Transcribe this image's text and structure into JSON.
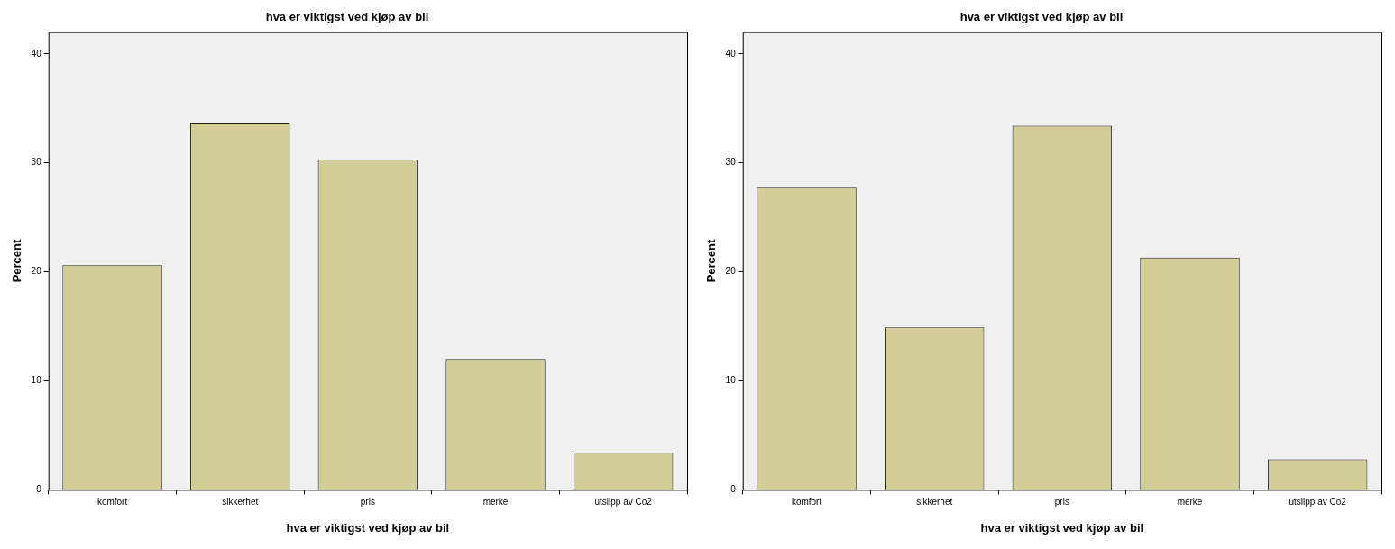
{
  "chart_data": [
    {
      "type": "bar",
      "title": "hva er viktigst ved kjøp av bil",
      "xlabel": "hva er viktigst ved kjøp av bil",
      "ylabel": "Percent",
      "categories": [
        "komfort",
        "sikkerhet",
        "pris",
        "merke",
        "utslipp av Co2"
      ],
      "values": [
        20.6,
        33.7,
        30.3,
        12.0,
        3.4
      ],
      "color": "#d3ce97",
      "ylim": [
        0,
        42
      ],
      "yticks": [
        0,
        10,
        20,
        30,
        40
      ],
      "grid": false,
      "legend": false
    },
    {
      "type": "bar",
      "title": "hva er viktigst ved kjøp av bil",
      "xlabel": "hva er viktigst ved kjøp av bil",
      "ylabel": "Percent",
      "categories": [
        "komfort",
        "sikkerhet",
        "pris",
        "merke",
        "utslipp av Co2"
      ],
      "values": [
        27.8,
        14.9,
        33.4,
        21.3,
        2.8
      ],
      "color": "#d3ce97",
      "ylim": [
        0,
        42
      ],
      "yticks": [
        0,
        10,
        20,
        30,
        40
      ],
      "grid": false,
      "legend": false
    }
  ]
}
